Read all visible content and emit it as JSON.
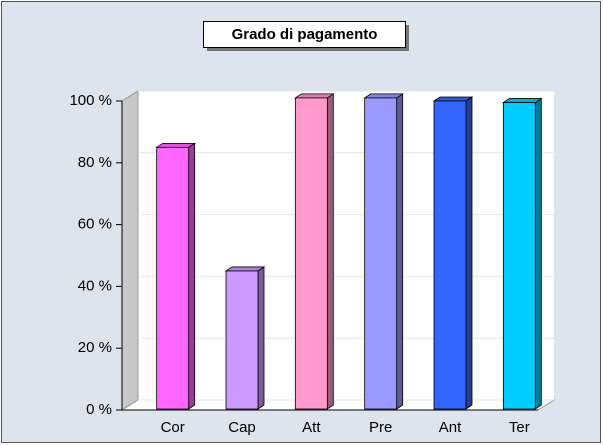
{
  "chart_data": {
    "type": "bar",
    "title": "Grado di pagamento",
    "categories": [
      "Cor",
      "Cap",
      "Att",
      "Pre",
      "Ant",
      "Ter"
    ],
    "values": [
      85,
      45,
      101,
      101,
      100,
      99.5
    ],
    "colors": [
      "#ff66ff",
      "#cc99ff",
      "#ff99cc",
      "#9999ff",
      "#3366ff",
      "#00ccff"
    ],
    "ylim": [
      0,
      100
    ],
    "yticks": [
      {
        "value": 0,
        "label": "0 %"
      },
      {
        "value": 20,
        "label": "20 %"
      },
      {
        "value": 40,
        "label": "40 %"
      },
      {
        "value": 60,
        "label": "60 %"
      },
      {
        "value": 80,
        "label": "80 %"
      },
      {
        "value": 100,
        "label": "100 %"
      }
    ],
    "grid": true
  }
}
